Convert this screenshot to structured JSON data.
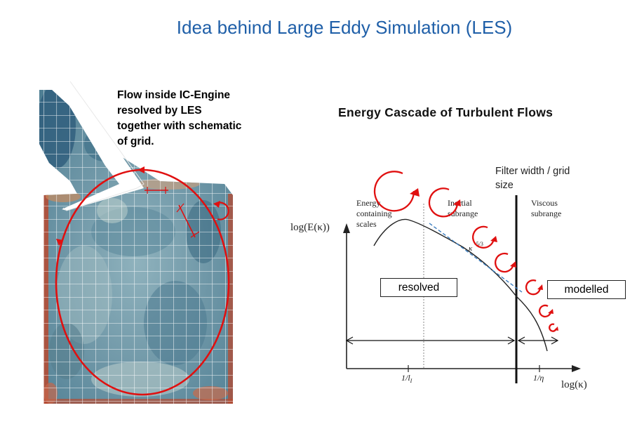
{
  "slide": {
    "title": "Idea behind Large Eddy Simulation (LES)"
  },
  "left_panel": {
    "caption": "Flow inside IC-Engine resolved by LES together with schematic of grid."
  },
  "right_panel": {
    "title": "Energy Cascade of Turbulent Flows",
    "filter_label": "Filter width / grid size",
    "resolved_label": "resolved",
    "modelled_label": "modelled",
    "ylabel": "log(E(κ))",
    "xlabel": "log(κ)",
    "region_energy": [
      "Energy",
      "containing",
      "scales"
    ],
    "region_inertial": [
      "Inertial",
      "subrange"
    ],
    "region_viscous": [
      "Viscous",
      "subrange"
    ],
    "slope_label": "κ",
    "slope_exponent": "-5/3",
    "tick_integral": "1/l",
    "tick_integral_sub": "I",
    "tick_kolmogorov": "1/η"
  },
  "colors": {
    "title": "#1f5fa8",
    "eddy_arrows": "#e01010",
    "flow_field_base": "#6f97a7",
    "wall_hot": "#b84a30",
    "dashed_slope": "#3d7fc0"
  },
  "icons": {
    "eddy": "circular-arrow-icon",
    "flow_field": "cfd-flow-field-image"
  }
}
